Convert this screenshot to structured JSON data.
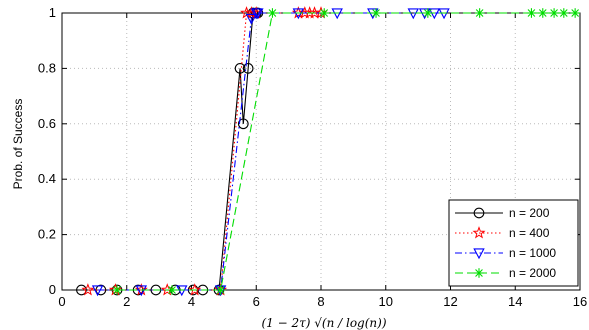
{
  "chart_data": {
    "type": "line",
    "title": "",
    "xlabel": "(1 − 2τ) √(n / log(n))",
    "ylabel": "Prob. of Success",
    "xlim": [
      0,
      16
    ],
    "ylim": [
      0,
      1
    ],
    "xticks": [
      0,
      2,
      4,
      6,
      8,
      10,
      12,
      14,
      16
    ],
    "yticks": [
      0,
      0.2,
      0.4,
      0.6,
      0.8,
      1
    ],
    "xtick_labels": [
      "0",
      "2",
      "4",
      "6",
      "8",
      "10",
      "12",
      "14",
      "16"
    ],
    "ytick_labels": [
      "0",
      "0.2",
      "0.4",
      "0.6",
      "0.8",
      "1"
    ],
    "grid": true,
    "legend_position": "bottom-right",
    "series": [
      {
        "name": "n = 200",
        "color": "#000000",
        "line_style": "solid",
        "marker": "circle",
        "x": [
          0.6,
          1.2,
          1.7,
          2.35,
          2.9,
          3.5,
          4.05,
          4.35,
          4.85,
          5.5,
          5.6,
          5.75,
          5.9,
          6.0,
          6.05
        ],
        "y": [
          0,
          0,
          0,
          0,
          0,
          0,
          0,
          0,
          0,
          0.8,
          0.6,
          0.8,
          1,
          1,
          1
        ]
      },
      {
        "name": "n = 400",
        "color": "#ff0000",
        "line_style": "dotted",
        "marker": "star",
        "x": [
          0.8,
          1.65,
          2.45,
          3.25,
          4.1,
          4.9,
          5.7,
          5.85,
          6.0,
          7.3,
          7.5,
          7.65,
          7.8,
          8.0
        ],
        "y": [
          0,
          0,
          0,
          0,
          0,
          0,
          1,
          1,
          1,
          1,
          1,
          1,
          1,
          1
        ]
      },
      {
        "name": "n = 1000",
        "color": "#0000ff",
        "line_style": "dashdot",
        "marker": "triangle-down",
        "x": [
          1.1,
          2.45,
          3.7,
          4.9,
          5.85,
          6.0,
          6.05,
          7.3,
          8.5,
          9.6,
          10.85,
          11.2,
          11.5,
          11.8
        ],
        "y": [
          0,
          0,
          0,
          0,
          0.98,
          1,
          1,
          1,
          1,
          1,
          1,
          1,
          1,
          1
        ]
      },
      {
        "name": "n = 2000",
        "color": "#00dd00",
        "line_style": "dashed",
        "marker": "asterisk",
        "x": [
          1.7,
          3.4,
          4.9,
          6.5,
          8.1,
          9.7,
          11.3,
          12.9,
          14.5,
          14.85,
          15.2,
          15.5,
          15.85
        ],
        "y": [
          0,
          0,
          0,
          1,
          1,
          1,
          1,
          1,
          1,
          1,
          1,
          1,
          1
        ]
      }
    ]
  }
}
